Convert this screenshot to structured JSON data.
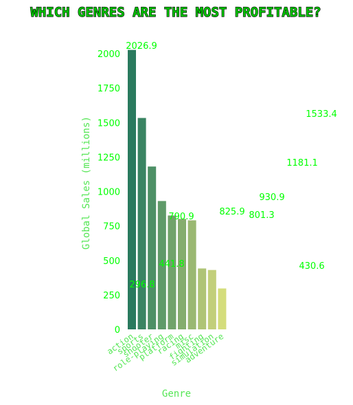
{
  "chart_data": {
    "type": "bar",
    "title": "WHICH GENRES ARE THE MOST PROFITABLE?",
    "xlabel": "Genre",
    "ylabel": "Global Sales (millions)",
    "ylim": [
      0,
      2100
    ],
    "yticks": [
      0,
      250,
      500,
      750,
      1000,
      1250,
      1500,
      1750,
      2000
    ],
    "categories": [
      "action",
      "sports",
      "shooter",
      "role-playing",
      "platform",
      "racing",
      "misc",
      "fighting",
      "simulation",
      "adventure"
    ],
    "values": [
      2026.9,
      1533.4,
      1181.1,
      930.9,
      825.9,
      801.3,
      790.9,
      441.8,
      430.6,
      296.8
    ],
    "data_labels": [
      {
        "text": "2026.9",
        "value": 2026.9
      },
      {
        "text": "1533.4",
        "value": 1533.4
      },
      {
        "text": "1181.1",
        "value": 1181.1
      },
      {
        "text": "930.9",
        "value": 930.9
      },
      {
        "text": "825.9",
        "value": 825.9
      },
      {
        "text": "801.3",
        "value": 801.3
      },
      {
        "text": "790.9",
        "value": 790.9
      },
      {
        "text": "441.8",
        "value": 441.8
      },
      {
        "text": "430.6",
        "value": 430.6
      },
      {
        "text": "296.8",
        "value": 296.8
      }
    ],
    "grid": false,
    "colors": {
      "bars": [
        "#2a7a5e",
        "#3a8463",
        "#4d9066",
        "#5f9a69",
        "#71a36b",
        "#85ad6e",
        "#9ab872",
        "#afc476",
        "#c2cf7a",
        "#d4dd7c"
      ],
      "text": "#00ff00",
      "axis_label": "#55e655",
      "title": "#00c000",
      "title_outline": "#000000"
    }
  }
}
